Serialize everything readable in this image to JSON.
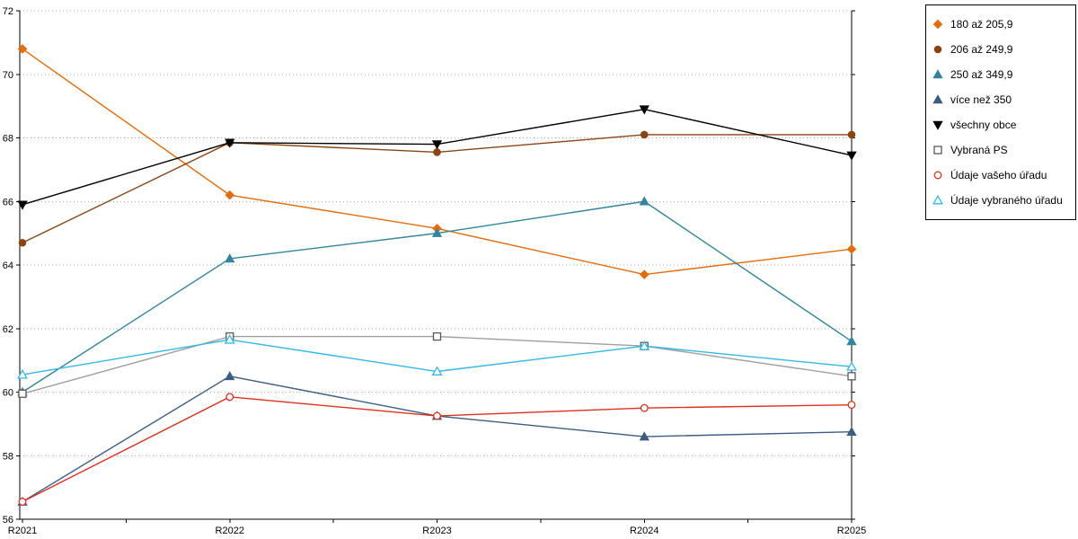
{
  "chart_data": {
    "type": "line",
    "x": [
      "R2021",
      "R2022",
      "R2023",
      "R2024",
      "R2025"
    ],
    "ylim": [
      56,
      72
    ],
    "ytick_step": 2,
    "yticks": [
      56,
      58,
      60,
      62,
      64,
      66,
      68,
      70,
      72
    ],
    "grid": "horizontal-dotted",
    "legend_position": "top-right-outside",
    "series": [
      {
        "name": "180 až 205,9",
        "color": "#E46C0A",
        "marker": "diamond",
        "marker_fill": "filled",
        "values": [
          70.8,
          66.2,
          65.15,
          63.7,
          64.5
        ]
      },
      {
        "name": "206 až 249,9",
        "color": "#8B4513",
        "marker": "circle",
        "marker_fill": "filled",
        "values": [
          64.7,
          67.85,
          67.55,
          68.1,
          68.1
        ]
      },
      {
        "name": "250 až 349,9",
        "color": "#31859C",
        "marker": "triangle-up",
        "marker_fill": "filled",
        "values": [
          60.0,
          64.2,
          65.0,
          66.0,
          61.6
        ]
      },
      {
        "name": "více než 350",
        "color": "#3B5D83",
        "marker": "triangle-up",
        "marker_fill": "filled",
        "values": [
          56.55,
          60.5,
          59.25,
          58.6,
          58.75
        ]
      },
      {
        "name": "všechny obce",
        "color": "#000000",
        "marker": "triangle-down",
        "marker_fill": "filled",
        "values": [
          65.9,
          67.85,
          67.8,
          68.9,
          67.45
        ]
      },
      {
        "name": "Vybraná PS",
        "color": "#A0A0A0",
        "marker_color": "#595959",
        "marker": "square",
        "marker_fill": "open",
        "values": [
          59.95,
          61.75,
          61.75,
          61.45,
          60.5
        ]
      },
      {
        "name": "Údaje vašeho úřadu",
        "color": "#E0301E",
        "marker": "circle",
        "marker_fill": "open",
        "values": [
          56.55,
          59.85,
          59.25,
          59.5,
          59.6
        ]
      },
      {
        "name": "Údaje vybraného úřadu",
        "color": "#33B8E8",
        "marker": "triangle-up",
        "marker_fill": "open",
        "values": [
          60.55,
          61.65,
          60.65,
          61.45,
          60.8
        ]
      }
    ]
  }
}
